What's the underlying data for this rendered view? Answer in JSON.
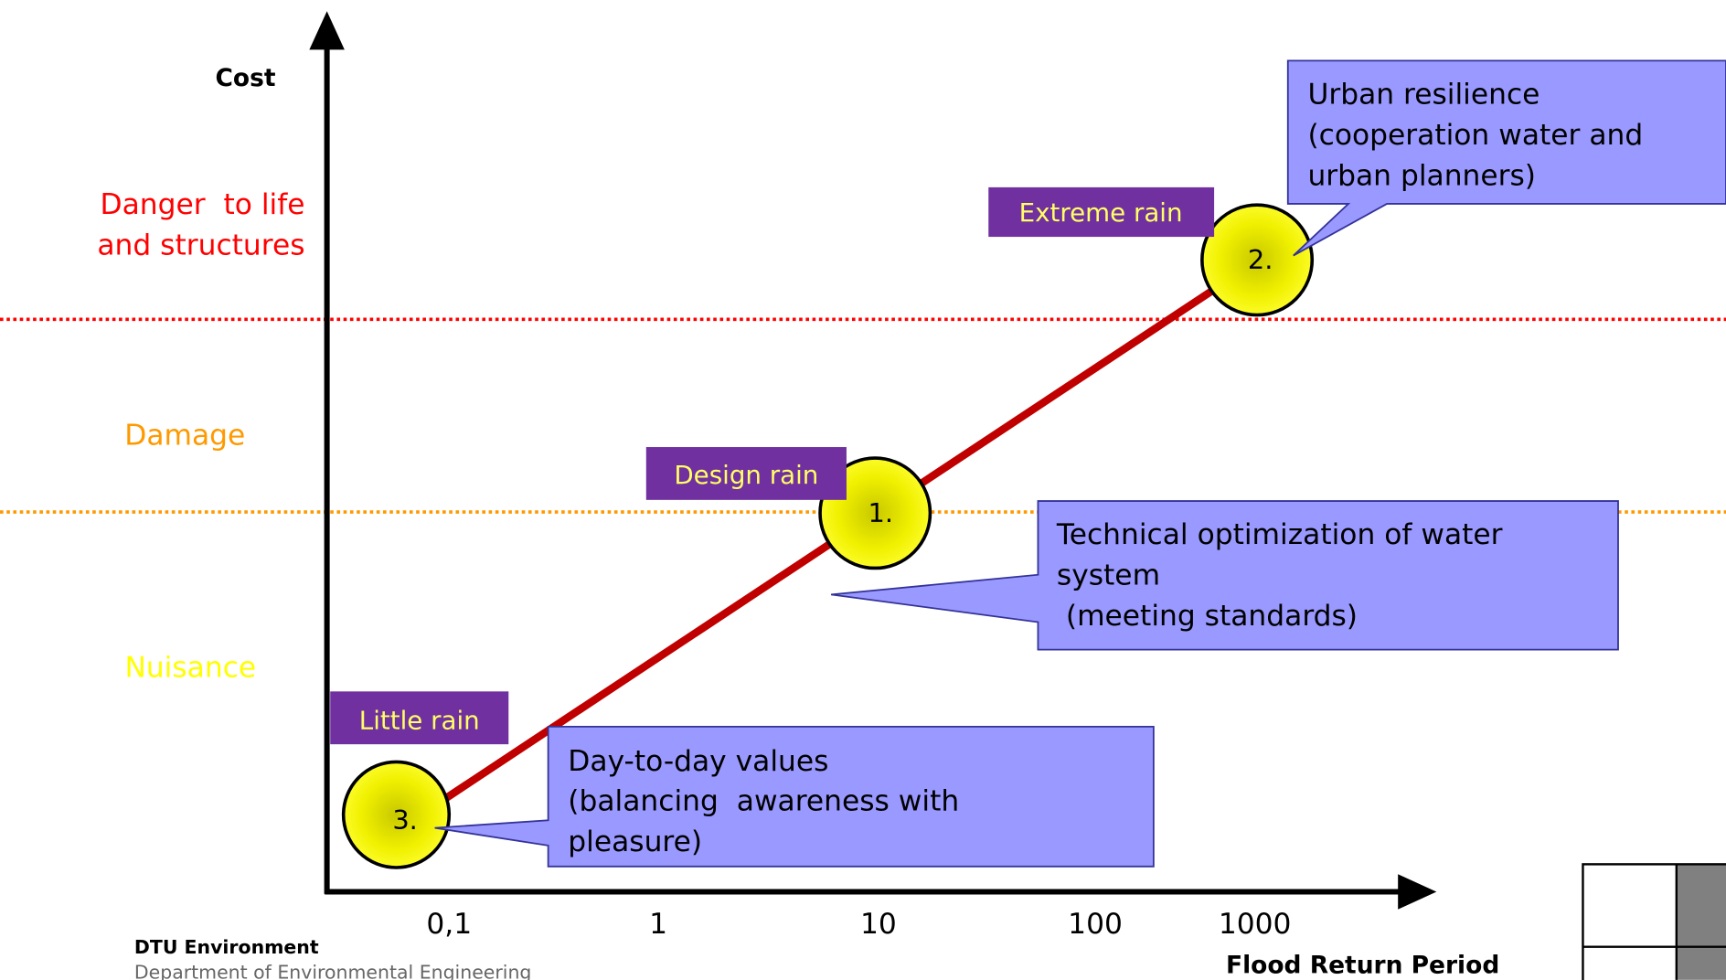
{
  "axes": {
    "y_label": "Cost",
    "x_label": "Flood Return Period",
    "x_ticks": [
      "0,1",
      "1",
      "10",
      "100",
      "1000"
    ]
  },
  "zones": [
    {
      "label": [
        "Danger  to life",
        "and structures"
      ]
    },
    {
      "label": [
        "Damage"
      ]
    },
    {
      "label": [
        "Nuisance"
      ]
    }
  ],
  "events": [
    {
      "tag": "Little rain",
      "number": "3."
    },
    {
      "tag": "Design rain",
      "number": "1."
    },
    {
      "tag": "Extreme rain",
      "number": "2."
    }
  ],
  "callouts": [
    {
      "lines": [
        "Urban resilience",
        "(cooperation water and",
        "urban planners)"
      ]
    },
    {
      "lines": [
        "Technical optimization of water",
        "system",
        " (meeting standards)"
      ]
    },
    {
      "lines": [
        "Day-to-day values",
        "(balancing  awareness with",
        "pleasure)"
      ]
    }
  ],
  "footer": {
    "org": "DTU Environment",
    "department": "Department of Environmental Engineering"
  }
}
